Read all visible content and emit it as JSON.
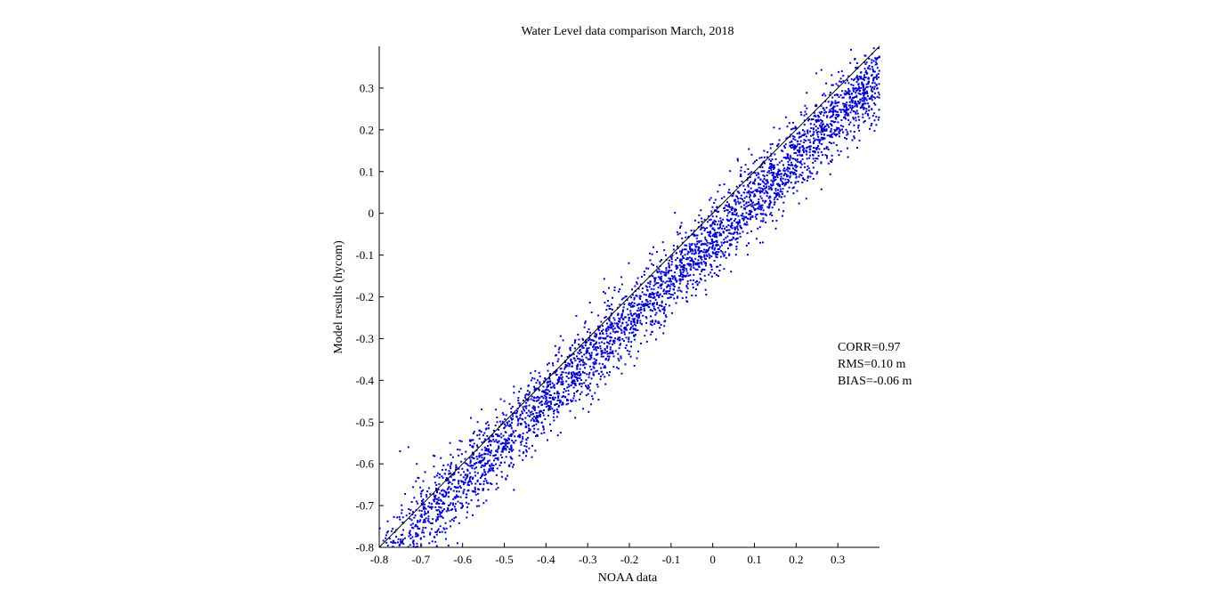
{
  "chart_data": {
    "type": "scatter",
    "title": "Water Level data comparison March, 2018",
    "xlabel": "NOAA data",
    "ylabel": "Model results (hycom)",
    "xlim": [
      -0.8,
      0.4
    ],
    "ylim": [
      -0.8,
      0.4
    ],
    "xticks": [
      -0.8,
      -0.7,
      -0.6,
      -0.5,
      -0.4,
      -0.3,
      -0.2,
      -0.1,
      0,
      0.1,
      0.2,
      0.3
    ],
    "yticks": [
      -0.8,
      -0.7,
      -0.6,
      -0.5,
      -0.4,
      -0.3,
      -0.2,
      -0.1,
      0,
      0.1,
      0.2,
      0.3
    ],
    "xtick_labels": [
      "-0.8",
      "-0.7",
      "-0.6",
      "-0.5",
      "-0.4",
      "-0.3",
      "-0.2",
      "-0.1",
      "0",
      "0.1",
      "0.2",
      "0.3"
    ],
    "ytick_labels": [
      "-0.8",
      "-0.7",
      "-0.6",
      "-0.5",
      "-0.4",
      "-0.3",
      "-0.2",
      "-0.1",
      "0",
      "0.1",
      "0.2",
      "0.3"
    ],
    "grid": false,
    "reference_line": {
      "slope": 1,
      "intercept": 0,
      "color": "#000000"
    },
    "series": [
      {
        "marker_color": "#0000cc",
        "trend": {
          "slope": 0.97,
          "intercept": -0.06
        },
        "x_range": [
          -0.8,
          0.4
        ],
        "points": [
          [
            -0.7,
            -0.78
          ],
          [
            -0.68,
            -0.79
          ],
          [
            -0.66,
            -0.76
          ],
          [
            -0.64,
            -0.78
          ],
          [
            -0.62,
            -0.73
          ],
          [
            -0.6,
            -0.7
          ],
          [
            -0.75,
            -0.57
          ],
          [
            -0.73,
            -0.56
          ],
          [
            -0.71,
            -0.6
          ],
          [
            -0.69,
            -0.62
          ],
          [
            -0.67,
            -0.58
          ],
          [
            -0.65,
            -0.63
          ],
          [
            -0.63,
            -0.55
          ],
          [
            -0.61,
            -0.58
          ],
          [
            -0.59,
            -0.6
          ],
          [
            -0.57,
            -0.62
          ],
          [
            -0.55,
            -0.66
          ],
          [
            -0.53,
            -0.6
          ],
          [
            -0.58,
            -0.49
          ],
          [
            -0.56,
            -0.52
          ],
          [
            -0.54,
            -0.5
          ],
          [
            -0.52,
            -0.47
          ],
          [
            -0.5,
            -0.45
          ],
          [
            -0.48,
            -0.48
          ],
          [
            -0.46,
            -0.42
          ],
          [
            -0.44,
            -0.46
          ],
          [
            -0.42,
            -0.4
          ],
          [
            -0.4,
            -0.43
          ],
          [
            -0.38,
            -0.38
          ],
          [
            -0.36,
            -0.41
          ],
          [
            -0.34,
            -0.35
          ],
          [
            -0.32,
            -0.38
          ],
          [
            -0.3,
            -0.33
          ],
          [
            -0.28,
            -0.36
          ],
          [
            -0.26,
            -0.3
          ],
          [
            -0.24,
            -0.33
          ],
          [
            -0.22,
            -0.27
          ],
          [
            -0.2,
            -0.25
          ],
          [
            -0.18,
            -0.28
          ],
          [
            -0.16,
            -0.22
          ],
          [
            -0.14,
            -0.2
          ],
          [
            -0.12,
            -0.23
          ],
          [
            -0.1,
            -0.17
          ],
          [
            -0.08,
            -0.15
          ],
          [
            -0.06,
            -0.18
          ],
          [
            -0.04,
            -0.12
          ],
          [
            -0.02,
            -0.1
          ],
          [
            0.0,
            -0.07
          ],
          [
            0.02,
            -0.09
          ],
          [
            0.04,
            -0.04
          ],
          [
            0.06,
            -0.06
          ],
          [
            0.08,
            -0.01
          ],
          [
            0.1,
            0.01
          ],
          [
            0.12,
            0.03
          ],
          [
            0.14,
            0.06
          ],
          [
            0.16,
            0.04
          ],
          [
            0.18,
            0.09
          ],
          [
            0.2,
            0.11
          ],
          [
            0.22,
            0.08
          ],
          [
            0.24,
            0.14
          ],
          [
            0.26,
            0.12
          ],
          [
            0.28,
            0.17
          ],
          [
            0.3,
            0.15
          ],
          [
            0.32,
            0.2
          ],
          [
            0.34,
            0.18
          ],
          [
            0.36,
            0.23
          ],
          [
            0.38,
            0.21
          ],
          [
            0.39,
            0.26
          ],
          [
            0.37,
            0.29
          ],
          [
            0.35,
            0.31
          ],
          [
            0.33,
            0.36
          ],
          [
            0.31,
            0.34
          ]
        ],
        "fill_count": 3800,
        "fill_spread": 0.045
      }
    ],
    "annotations": [
      "CORR=0.97",
      "RMS=0.10 m",
      "BIAS=-0.06 m"
    ]
  }
}
